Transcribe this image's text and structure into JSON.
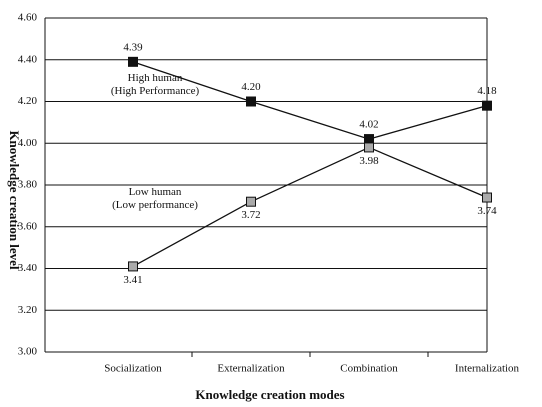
{
  "chart_data": {
    "type": "line",
    "xlabel": "Knowledge creation modes",
    "ylabel": "Knowledge creation level",
    "categories": [
      "Socialization",
      "Externalization",
      "Combination",
      "Internalization"
    ],
    "series": [
      {
        "name": "High human\n(High Performance)",
        "color": "#111111",
        "values": [
          4.39,
          4.2,
          4.02,
          4.18
        ],
        "value_labels": [
          "4.39",
          "4.20",
          "4.02",
          "4.18"
        ]
      },
      {
        "name": "Low human\n(Low performance)",
        "color": "#aaaaaa",
        "values": [
          3.41,
          3.72,
          3.98,
          3.74
        ],
        "value_labels": [
          "3.41",
          "3.72",
          "3.98",
          "3.74"
        ]
      }
    ],
    "ylim": [
      3.0,
      4.6
    ],
    "yticks": [
      {
        "value": 3.0,
        "label": "3.00"
      },
      {
        "value": 3.2,
        "label": "3.20"
      },
      {
        "value": 3.4,
        "label": "3.40"
      },
      {
        "value": 3.6,
        "label": "3.60"
      },
      {
        "value": 3.8,
        "label": "3.80"
      },
      {
        "value": 4.0,
        "label": "4.00"
      },
      {
        "value": 4.2,
        "label": "4.20"
      },
      {
        "value": 4.4,
        "label": "4.40"
      },
      {
        "value": 4.6,
        "label": "4.60"
      }
    ],
    "grid": true
  }
}
